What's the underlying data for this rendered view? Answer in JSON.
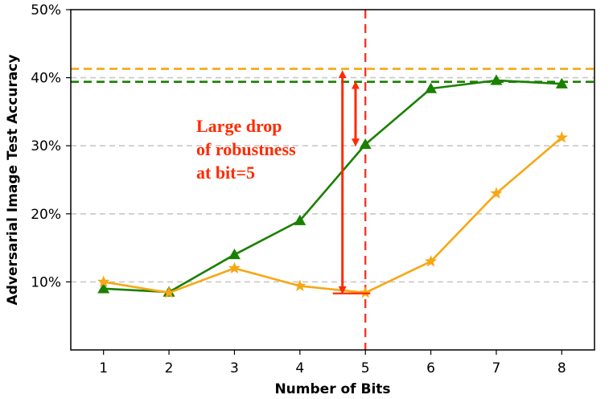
{
  "chart_data": {
    "type": "line",
    "title": "",
    "xlabel": "Number of Bits",
    "ylabel": "Adversarial Image Test Accuracy",
    "x": [
      1,
      2,
      3,
      4,
      5,
      6,
      7,
      8
    ],
    "x_ticks": [
      "1",
      "2",
      "3",
      "4",
      "5",
      "6",
      "7",
      "8"
    ],
    "xlim": [
      0.5,
      8.5
    ],
    "ylim": [
      0,
      50
    ],
    "y_ticks": [
      10,
      20,
      30,
      40,
      50
    ],
    "y_tick_labels": [
      "10%",
      "20%",
      "30%",
      "40%",
      "50%"
    ],
    "grid": "horizontal dashed",
    "legend": "none",
    "series": [
      {
        "color": "#1a8000",
        "marker": "triangle",
        "values": [
          9.0,
          8.5,
          14.0,
          19.0,
          30.2,
          38.4,
          39.6,
          39.1
        ],
        "baseline": 39.4
      },
      {
        "color": "#f7a713",
        "marker": "star",
        "values": [
          10.0,
          8.4,
          12.0,
          9.4,
          8.4,
          13.0,
          23.0,
          31.2
        ],
        "baseline": 41.3
      }
    ],
    "vline": {
      "x": 5,
      "color": "#f03a2a"
    },
    "annotation": {
      "lines": [
        "Large drop",
        "of robustness",
        "at bit=5"
      ],
      "color": "#ff2a00",
      "long_arrow": {
        "x": 4.65,
        "from": 41.0,
        "to": 8.3
      },
      "short_arrow": {
        "x": 4.85,
        "from": 39.4,
        "to": 30.0
      }
    }
  }
}
